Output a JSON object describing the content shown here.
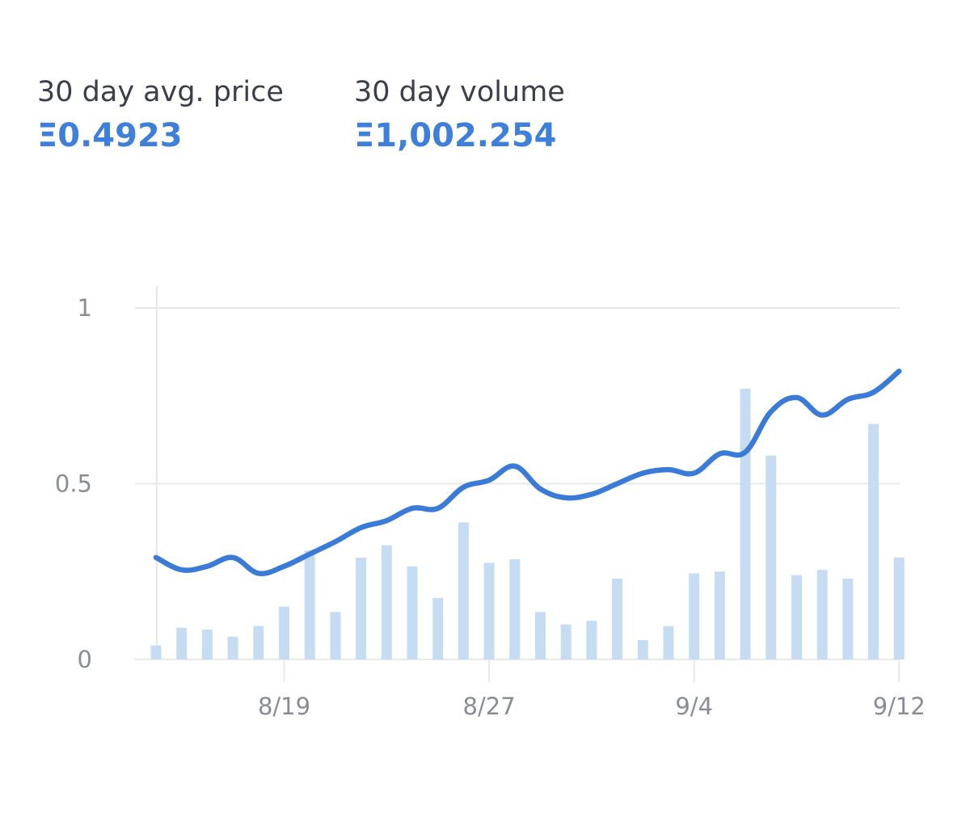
{
  "stats": {
    "avg_price_label": "30 day avg. price",
    "avg_price_value": "Ξ0.4923",
    "volume_label": "30 day volume",
    "volume_value": "Ξ1,002.254"
  },
  "colors": {
    "accent": "#3d7fd9",
    "line": "#3a7bd8",
    "bar": "#c6dcf3",
    "grid": "#e6e8ee",
    "label": "#3b3f4a",
    "tick": "#8a8d93"
  },
  "chart_data": {
    "type": "bar",
    "title": "",
    "xlabel": "",
    "ylabel": "",
    "ylim": [
      0,
      1
    ],
    "y_ticks": [
      "0",
      "0.5",
      "1"
    ],
    "x_ticks": [
      {
        "label": "8/19",
        "day": 5
      },
      {
        "label": "8/27",
        "day": 13
      },
      {
        "label": "9/4",
        "day": 21
      },
      {
        "label": "9/12",
        "day": 29
      }
    ],
    "grid": true,
    "days": 30,
    "series": [
      {
        "type": "bar",
        "values": [
          0.04,
          0.09,
          0.085,
          0.065,
          0.095,
          0.15,
          0.31,
          0.135,
          0.29,
          0.325,
          0.265,
          0.175,
          0.39,
          0.275,
          0.285,
          0.135,
          0.1,
          0.11,
          0.23,
          0.055,
          0.095,
          0.245,
          0.25,
          0.77,
          0.58,
          0.24,
          0.255,
          0.23,
          0.67,
          0.29
        ]
      },
      {
        "type": "line",
        "values": [
          0.29,
          0.255,
          0.265,
          0.29,
          0.245,
          0.265,
          0.3,
          0.335,
          0.375,
          0.395,
          0.43,
          0.43,
          0.49,
          0.51,
          0.55,
          0.485,
          0.46,
          0.47,
          0.5,
          0.53,
          0.54,
          0.53,
          0.585,
          0.59,
          0.705,
          0.745,
          0.695,
          0.74,
          0.76,
          0.82
        ]
      }
    ]
  }
}
